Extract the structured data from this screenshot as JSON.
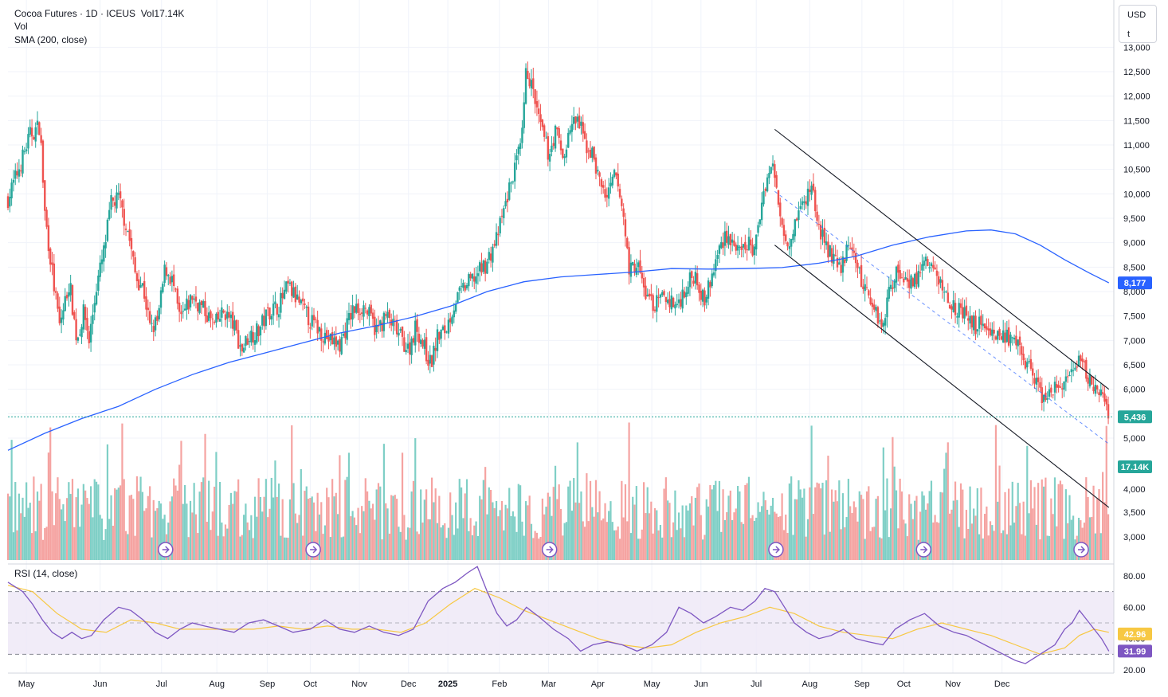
{
  "header": {
    "symbol": "Cocoa Futures · 1D · ICEUS",
    "volume": "Vol17.14K",
    "vol_label": "Vol",
    "sma_label": "SMA (200, close)",
    "currency": "USD",
    "unit": "t"
  },
  "rsi_panel": {
    "label": "RSI (14, close)"
  },
  "colors": {
    "up": "#26a69a",
    "down": "#ef5350",
    "up_volume": "#7fcfc6",
    "down_volume": "#f5a3a1",
    "sma": "#2962ff",
    "rsi": "#7e57c2",
    "rsi_ma": "#f7c843",
    "rsi_band": "#ede7f6",
    "channel": "#131722",
    "midline": "#2962ff"
  },
  "chart_data": [
    {
      "type": "candlestick",
      "yaxis": {
        "ticks": [
          "13,000",
          "12,500",
          "12,000",
          "11,500",
          "11,000",
          "10,500",
          "10,000",
          "9,500",
          "9,000",
          "8,500",
          "8,000",
          "7,500",
          "7,000",
          "6,500",
          "6,000",
          "5,500",
          "5,000",
          "4,000",
          "3,500",
          "3,000"
        ],
        "tick_values": [
          13000,
          12500,
          12000,
          11500,
          11000,
          10500,
          10000,
          9500,
          9000,
          8500,
          8000,
          7500,
          7000,
          6500,
          6000,
          5500,
          5000,
          4000,
          3500,
          3000
        ],
        "range": [
          2500,
          13050
        ]
      },
      "xaxis": {
        "ticks": [
          "May",
          "Jun",
          "Jul",
          "Aug",
          "Sep",
          "Oct",
          "Nov",
          "Dec",
          "2025",
          "Feb",
          "Mar",
          "Apr",
          "May",
          "Jun",
          "Jul",
          "Aug",
          "Sep",
          "Oct",
          "Nov",
          "Dec"
        ],
        "tick_index": [
          30,
          150,
          250,
          340,
          422,
          492,
          572,
          652,
          716,
          800,
          880,
          960,
          1048,
          1128,
          1218,
          1305,
          1390,
          1458,
          1538,
          1618
        ],
        "bars_count": 400
      },
      "close_path": [
        [
          0,
          9900
        ],
        [
          10,
          10600
        ],
        [
          18,
          11200
        ],
        [
          26,
          11400
        ],
        [
          30,
          9600
        ],
        [
          38,
          8000
        ],
        [
          42,
          7300
        ],
        [
          50,
          8200
        ],
        [
          56,
          7000
        ],
        [
          62,
          7600
        ],
        [
          66,
          7000
        ],
        [
          72,
          8100
        ],
        [
          78,
          8800
        ],
        [
          84,
          9800
        ],
        [
          90,
          9900
        ],
        [
          98,
          9200
        ],
        [
          104,
          8300
        ],
        [
          110,
          8100
        ],
        [
          116,
          7200
        ],
        [
          122,
          7400
        ],
        [
          128,
          8500
        ],
        [
          134,
          8200
        ],
        [
          140,
          7400
        ],
        [
          150,
          7900
        ],
        [
          160,
          7600
        ],
        [
          168,
          7300
        ],
        [
          176,
          7600
        ],
        [
          184,
          7300
        ],
        [
          190,
          6800
        ],
        [
          196,
          7100
        ],
        [
          204,
          7200
        ],
        [
          212,
          7600
        ],
        [
          220,
          7700
        ],
        [
          228,
          8100
        ],
        [
          236,
          7800
        ],
        [
          246,
          7400
        ],
        [
          254,
          7200
        ],
        [
          262,
          7000
        ],
        [
          270,
          6900
        ],
        [
          280,
          7600
        ],
        [
          290,
          7700
        ],
        [
          300,
          7200
        ],
        [
          308,
          7500
        ],
        [
          316,
          7200
        ],
        [
          326,
          6800
        ],
        [
          332,
          7300
        ],
        [
          338,
          6900
        ],
        [
          344,
          6500
        ],
        [
          350,
          7100
        ],
        [
          356,
          7200
        ],
        [
          364,
          7800
        ],
        [
          372,
          8100
        ],
        [
          380,
          8300
        ],
        [
          390,
          8600
        ],
        [
          398,
          9100
        ],
        [
          404,
          9700
        ],
        [
          410,
          10300
        ],
        [
          418,
          11000
        ],
        [
          422,
          12600
        ],
        [
          428,
          12000
        ],
        [
          432,
          11500
        ],
        [
          440,
          10800
        ],
        [
          446,
          11300
        ],
        [
          452,
          10700
        ],
        [
          458,
          11400
        ],
        [
          464,
          11500
        ],
        [
          470,
          11000
        ],
        [
          476,
          10800
        ],
        [
          482,
          10200
        ],
        [
          488,
          9900
        ],
        [
          494,
          10400
        ],
        [
          500,
          9700
        ],
        [
          506,
          8400
        ],
        [
          512,
          8600
        ],
        [
          518,
          8000
        ],
        [
          526,
          7700
        ],
        [
          534,
          7900
        ],
        [
          544,
          7700
        ],
        [
          552,
          8100
        ],
        [
          560,
          8400
        ],
        [
          566,
          7800
        ],
        [
          572,
          8200
        ],
        [
          578,
          8800
        ],
        [
          584,
          9200
        ],
        [
          590,
          9000
        ],
        [
          596,
          8700
        ],
        [
          602,
          9000
        ],
        [
          608,
          8800
        ],
        [
          612,
          9600
        ],
        [
          616,
          10200
        ],
        [
          622,
          10600
        ],
        [
          626,
          10000
        ],
        [
          630,
          9400
        ],
        [
          636,
          9000
        ],
        [
          642,
          9600
        ],
        [
          648,
          9800
        ],
        [
          654,
          10200
        ],
        [
          660,
          9300
        ],
        [
          666,
          8900
        ],
        [
          672,
          8700
        ],
        [
          676,
          8400
        ],
        [
          682,
          8800
        ],
        [
          688,
          8900
        ],
        [
          694,
          8200
        ],
        [
          700,
          8000
        ],
        [
          706,
          7600
        ],
        [
          712,
          7300
        ],
        [
          716,
          7900
        ],
        [
          722,
          8400
        ],
        [
          730,
          8300
        ],
        [
          738,
          8200
        ],
        [
          746,
          8600
        ],
        [
          752,
          8500
        ],
        [
          758,
          8200
        ],
        [
          764,
          7900
        ],
        [
          770,
          7700
        ],
        [
          776,
          7600
        ],
        [
          782,
          7400
        ],
        [
          788,
          7300
        ],
        [
          794,
          7400
        ],
        [
          800,
          7200
        ],
        [
          806,
          7100
        ],
        [
          812,
          7100
        ],
        [
          818,
          6900
        ],
        [
          824,
          6800
        ],
        [
          830,
          6500
        ],
        [
          836,
          6200
        ],
        [
          840,
          5900
        ],
        [
          846,
          5800
        ],
        [
          852,
          6000
        ],
        [
          858,
          6100
        ],
        [
          864,
          6300
        ],
        [
          868,
          6200
        ],
        [
          872,
          6600
        ],
        [
          876,
          6400
        ],
        [
          880,
          6200
        ],
        [
          884,
          6100
        ],
        [
          888,
          5900
        ],
        [
          892,
          5700
        ],
        [
          896,
          5436
        ]
      ],
      "sma_200": {
        "name": "SMA (200, close)",
        "last": "8,177",
        "points": [
          [
            0,
            4750
          ],
          [
            30,
            5100
          ],
          [
            60,
            5400
          ],
          [
            90,
            5650
          ],
          [
            120,
            6000
          ],
          [
            150,
            6300
          ],
          [
            180,
            6550
          ],
          [
            210,
            6750
          ],
          [
            240,
            6950
          ],
          [
            270,
            7150
          ],
          [
            300,
            7300
          ],
          [
            330,
            7480
          ],
          [
            360,
            7700
          ],
          [
            390,
            8000
          ],
          [
            420,
            8200
          ],
          [
            450,
            8300
          ],
          [
            480,
            8350
          ],
          [
            510,
            8400
          ],
          [
            540,
            8470
          ],
          [
            570,
            8460
          ],
          [
            600,
            8470
          ],
          [
            630,
            8490
          ],
          [
            660,
            8580
          ],
          [
            690,
            8720
          ],
          [
            720,
            8950
          ],
          [
            750,
            9120
          ],
          [
            780,
            9240
          ],
          [
            800,
            9260
          ],
          [
            820,
            9180
          ],
          [
            840,
            8950
          ],
          [
            860,
            8650
          ],
          [
            880,
            8380
          ],
          [
            896,
            8177
          ]
        ]
      },
      "last_price": "5,436",
      "channel": {
        "upper": [
          [
            624,
            11320
          ],
          [
            896,
            6000
          ]
        ],
        "lower": [
          [
            624,
            8950
          ],
          [
            896,
            3580
          ]
        ],
        "midline_dashed": [
          [
            624,
            10050
          ],
          [
            896,
            4880
          ]
        ]
      },
      "volume": {
        "label": "Vol",
        "last": "17.14K",
        "highlight_rise": [
          0.8
        ]
      },
      "event_markers_x": [
        96,
        186,
        330,
        468,
        558,
        654,
        750,
        890
      ]
    },
    {
      "type": "line",
      "title": "RSI (14, close)",
      "yaxis": {
        "ticks": [
          "80.00",
          "60.00",
          "40.00",
          "20.00"
        ],
        "tick_values": [
          80,
          60,
          40,
          20
        ],
        "range": [
          16,
          86
        ]
      },
      "bands": {
        "upper": 70,
        "middle": 50,
        "lower": 30
      },
      "last_rsi": "31.99",
      "last_rsi_ma": "42.96",
      "rsi_path": [
        [
          0,
          76
        ],
        [
          12,
          70
        ],
        [
          20,
          62
        ],
        [
          28,
          52
        ],
        [
          36,
          44
        ],
        [
          44,
          40
        ],
        [
          52,
          44
        ],
        [
          60,
          40
        ],
        [
          68,
          42
        ],
        [
          78,
          52
        ],
        [
          90,
          60
        ],
        [
          100,
          58
        ],
        [
          110,
          52
        ],
        [
          120,
          44
        ],
        [
          130,
          40
        ],
        [
          140,
          46
        ],
        [
          150,
          50
        ],
        [
          160,
          48
        ],
        [
          172,
          46
        ],
        [
          184,
          44
        ],
        [
          196,
          50
        ],
        [
          208,
          52
        ],
        [
          220,
          48
        ],
        [
          232,
          44
        ],
        [
          246,
          46
        ],
        [
          258,
          52
        ],
        [
          270,
          46
        ],
        [
          282,
          44
        ],
        [
          294,
          48
        ],
        [
          306,
          44
        ],
        [
          318,
          42
        ],
        [
          330,
          46
        ],
        [
          342,
          64
        ],
        [
          354,
          72
        ],
        [
          364,
          76
        ],
        [
          374,
          82
        ],
        [
          382,
          86
        ],
        [
          390,
          70
        ],
        [
          398,
          56
        ],
        [
          406,
          48
        ],
        [
          414,
          52
        ],
        [
          422,
          60
        ],
        [
          432,
          54
        ],
        [
          444,
          46
        ],
        [
          456,
          40
        ],
        [
          466,
          32
        ],
        [
          476,
          36
        ],
        [
          488,
          38
        ],
        [
          500,
          36
        ],
        [
          512,
          32
        ],
        [
          524,
          36
        ],
        [
          536,
          44
        ],
        [
          546,
          60
        ],
        [
          556,
          56
        ],
        [
          566,
          50
        ],
        [
          576,
          54
        ],
        [
          588,
          60
        ],
        [
          598,
          58
        ],
        [
          608,
          64
        ],
        [
          616,
          72
        ],
        [
          624,
          70
        ],
        [
          632,
          60
        ],
        [
          640,
          50
        ],
        [
          650,
          44
        ],
        [
          660,
          40
        ],
        [
          670,
          42
        ],
        [
          680,
          46
        ],
        [
          690,
          40
        ],
        [
          700,
          38
        ],
        [
          712,
          36
        ],
        [
          722,
          46
        ],
        [
          734,
          52
        ],
        [
          746,
          56
        ],
        [
          758,
          48
        ],
        [
          770,
          44
        ],
        [
          780,
          42
        ],
        [
          790,
          38
        ],
        [
          800,
          34
        ],
        [
          810,
          30
        ],
        [
          820,
          26
        ],
        [
          828,
          24
        ],
        [
          836,
          28
        ],
        [
          844,
          32
        ],
        [
          852,
          36
        ],
        [
          860,
          46
        ],
        [
          866,
          50
        ],
        [
          872,
          58
        ],
        [
          878,
          52
        ],
        [
          884,
          46
        ],
        [
          890,
          40
        ],
        [
          896,
          32
        ]
      ],
      "rsi_ma_path": [
        [
          0,
          74
        ],
        [
          20,
          70
        ],
        [
          40,
          56
        ],
        [
          60,
          46
        ],
        [
          80,
          44
        ],
        [
          100,
          52
        ],
        [
          120,
          50
        ],
        [
          140,
          46
        ],
        [
          160,
          46
        ],
        [
          180,
          46
        ],
        [
          200,
          46
        ],
        [
          220,
          48
        ],
        [
          240,
          46
        ],
        [
          260,
          48
        ],
        [
          280,
          46
        ],
        [
          300,
          46
        ],
        [
          320,
          44
        ],
        [
          340,
          50
        ],
        [
          360,
          62
        ],
        [
          380,
          72
        ],
        [
          400,
          66
        ],
        [
          420,
          58
        ],
        [
          440,
          52
        ],
        [
          460,
          46
        ],
        [
          480,
          40
        ],
        [
          500,
          36
        ],
        [
          520,
          34
        ],
        [
          540,
          36
        ],
        [
          560,
          44
        ],
        [
          580,
          50
        ],
        [
          600,
          54
        ],
        [
          620,
          60
        ],
        [
          640,
          56
        ],
        [
          660,
          48
        ],
        [
          680,
          44
        ],
        [
          700,
          42
        ],
        [
          720,
          40
        ],
        [
          740,
          46
        ],
        [
          760,
          50
        ],
        [
          780,
          46
        ],
        [
          800,
          42
        ],
        [
          820,
          36
        ],
        [
          840,
          30
        ],
        [
          860,
          34
        ],
        [
          872,
          42
        ],
        [
          884,
          46
        ],
        [
          896,
          44
        ]
      ]
    }
  ]
}
